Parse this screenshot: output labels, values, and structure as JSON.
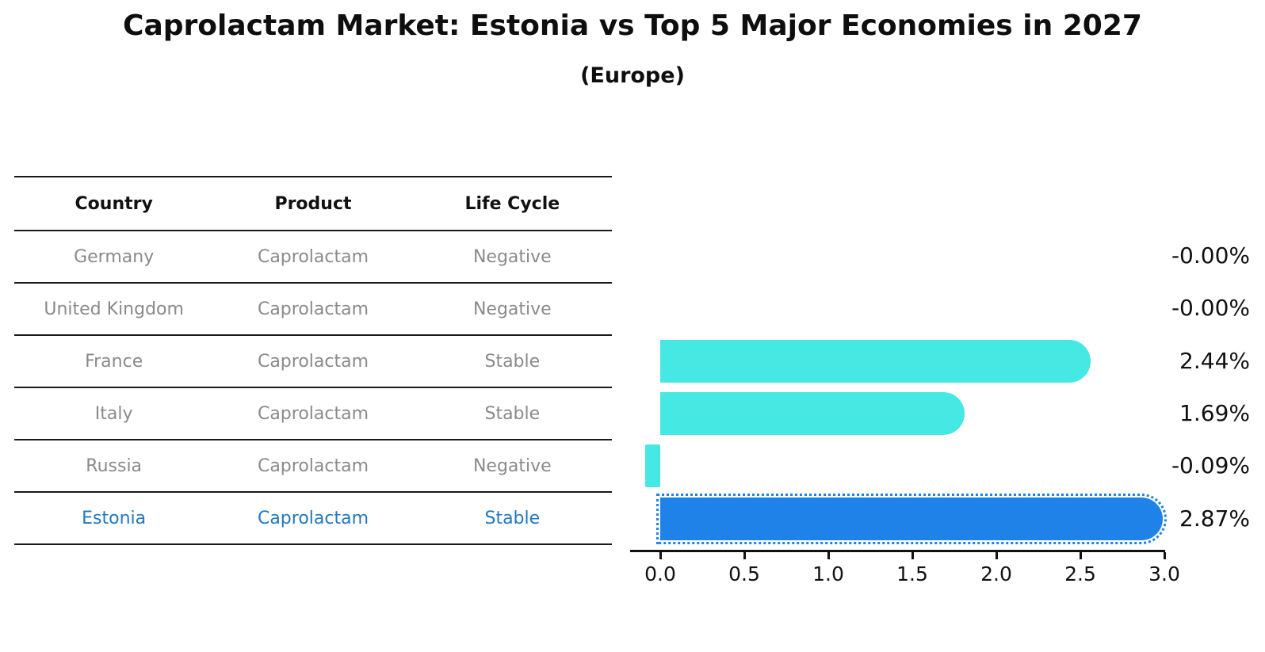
{
  "header": {
    "title": "Caprolactam Market: Estonia vs Top 5 Major Economies in 2027",
    "subtitle": "(Europe)"
  },
  "table": {
    "headers": [
      "Country",
      "Product",
      "Life Cycle"
    ],
    "rows": [
      {
        "country": "Germany",
        "product": "Caprolactam",
        "life_cycle": "Negative",
        "highlight": false
      },
      {
        "country": "United Kingdom",
        "product": "Caprolactam",
        "life_cycle": "Negative",
        "highlight": false
      },
      {
        "country": "France",
        "product": "Caprolactam",
        "life_cycle": "Stable",
        "highlight": false
      },
      {
        "country": "Italy",
        "product": "Caprolactam",
        "life_cycle": "Stable",
        "highlight": false
      },
      {
        "country": "Russia",
        "product": "Caprolactam",
        "life_cycle": "Negative",
        "highlight": false
      },
      {
        "country": "Estonia",
        "product": "Caprolactam",
        "life_cycle": "Stable",
        "highlight": true
      }
    ]
  },
  "chart_data": {
    "type": "bar",
    "orientation": "horizontal",
    "title": "Caprolactam Market: Estonia vs Top 5 Major Economies in 2027",
    "subtitle": "(Europe)",
    "categories": [
      "Germany",
      "United Kingdom",
      "France",
      "Italy",
      "Russia",
      "Estonia"
    ],
    "values": [
      -0.0,
      -0.0,
      2.44,
      1.69,
      -0.09,
      2.87
    ],
    "value_labels": [
      "-0.00%",
      "-0.00%",
      "2.44%",
      "1.69%",
      "-0.09%",
      "2.87%"
    ],
    "x_tick_labels": [
      "0.0",
      "0.5",
      "1.0",
      "1.5",
      "2.0",
      "2.5",
      "3.0"
    ],
    "xlim": [
      -0.18,
      3.0
    ],
    "grid": false,
    "legend": null,
    "highlight_index": 5,
    "bar_color": "#46E8E4",
    "highlight_color": "#1E82E8"
  },
  "colors": {
    "header_text": "#111111",
    "row_text": "#8a8a8a",
    "highlight_text": "#2278BE",
    "divider": "#1a1a1a",
    "axis": "#111111"
  }
}
